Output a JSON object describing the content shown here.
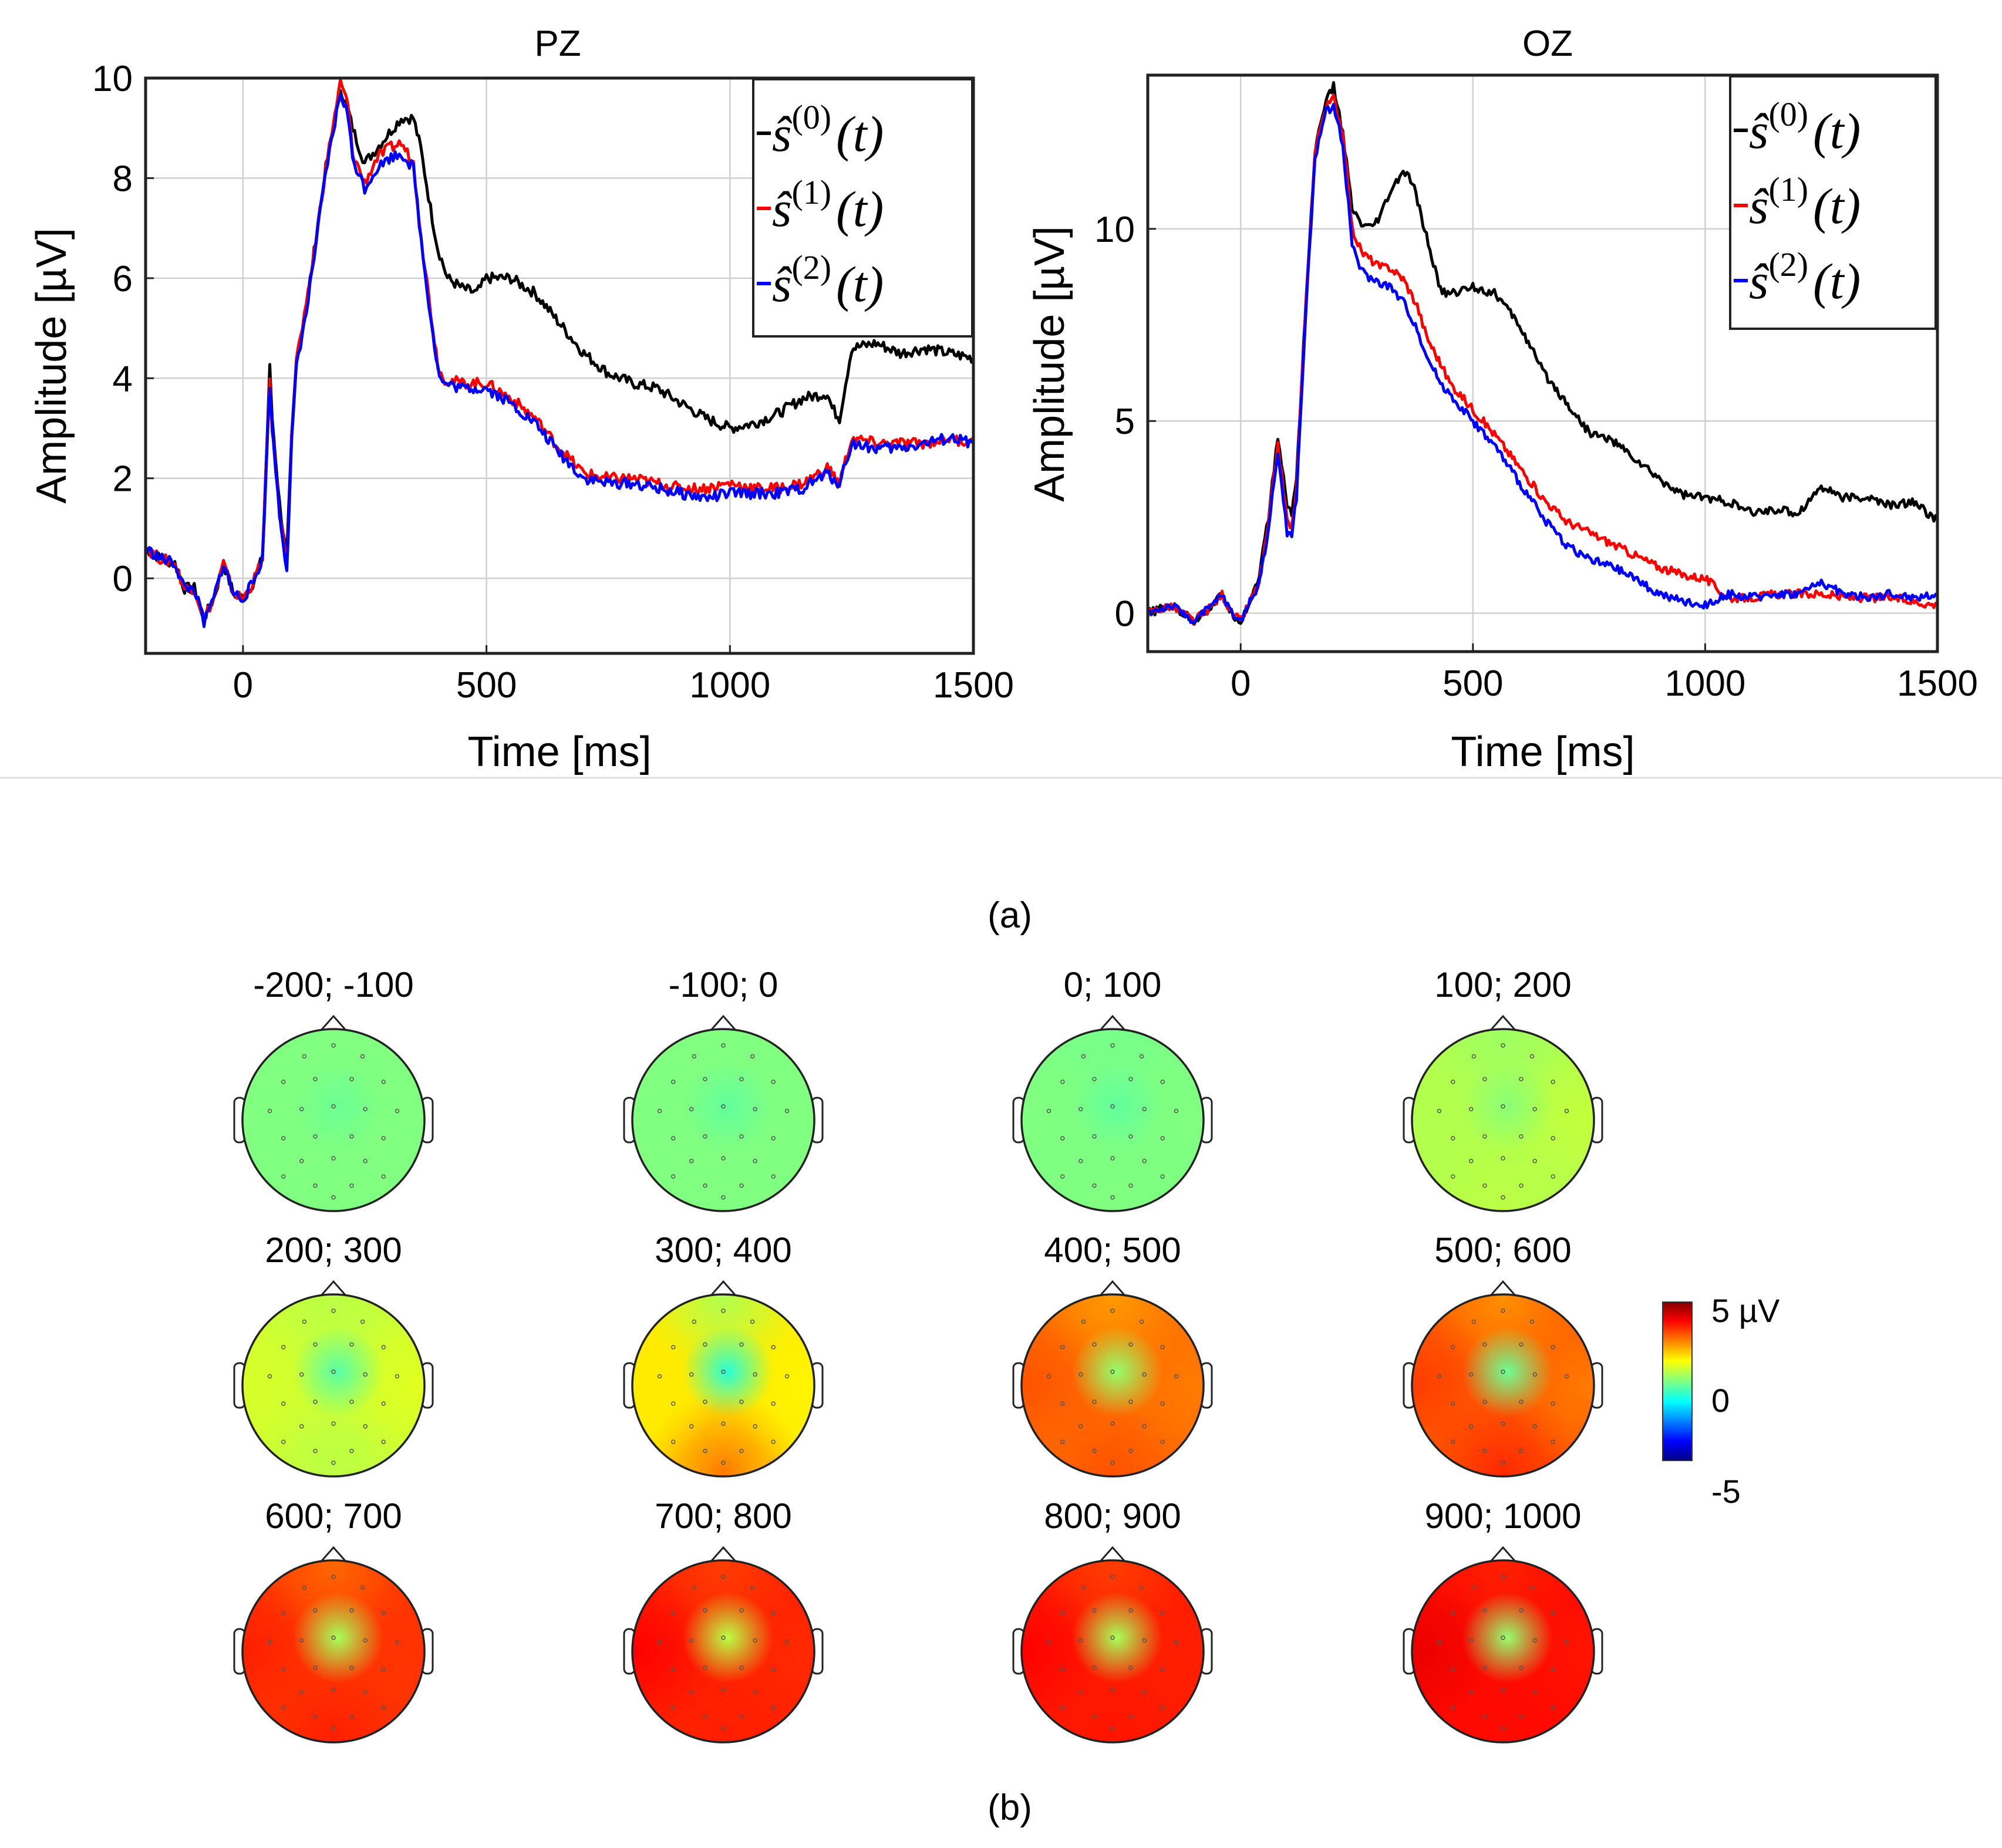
{
  "panel_labels": [
    "(a)",
    "(b)"
  ],
  "chart_data": [
    {
      "type": "line",
      "title": "PZ",
      "xlabel": "Time [ms]",
      "ylabel": "Amplitude [µV]",
      "xlim": [
        -200,
        1500
      ],
      "ylim": [
        -1.5,
        10
      ],
      "xticks": [
        0,
        500,
        1000,
        1500
      ],
      "yticks": [
        0,
        2,
        4,
        6,
        8,
        10
      ],
      "grid": true,
      "legend_position": "top-right",
      "series": [
        {
          "name": "ŝ(0)(t)",
          "legend_base": "ŝ",
          "legend_sup": "(0)",
          "legend_arg": "(t)",
          "color": "#000000",
          "x": [
            -200,
            -170,
            -140,
            -120,
            -100,
            -80,
            -60,
            -40,
            -20,
            0,
            20,
            40,
            55,
            60,
            75,
            90,
            100,
            110,
            130,
            150,
            170,
            200,
            215,
            225,
            250,
            275,
            300,
            325,
            350,
            365,
            385,
            400,
            420,
            450,
            480,
            500,
            550,
            600,
            650,
            700,
            750,
            800,
            850,
            900,
            950,
            1000,
            1050,
            1100,
            1150,
            1200,
            1210,
            1225,
            1250,
            1300,
            1350,
            1400,
            1450,
            1500
          ],
          "y": [
            0.6,
            0.4,
            0.3,
            -0.2,
            -0.2,
            -0.8,
            -0.4,
            0.3,
            -0.3,
            -0.4,
            -0.1,
            0.4,
            4.2,
            3.2,
            1.5,
            0.4,
            2.8,
            4.4,
            5.4,
            6.8,
            8.2,
            9.8,
            9.4,
            9.0,
            8.3,
            8.6,
            8.9,
            9.2,
            9.2,
            8.6,
            7.4,
            6.6,
            6.0,
            5.8,
            5.7,
            6.0,
            6.0,
            5.7,
            5.1,
            4.5,
            4.1,
            3.9,
            3.8,
            3.5,
            3.2,
            3.0,
            3.1,
            3.3,
            3.6,
            3.7,
            3.4,
            3.2,
            4.6,
            4.7,
            4.5,
            4.6,
            4.5,
            4.4
          ]
        },
        {
          "name": "ŝ(1)(t)",
          "legend_base": "ŝ",
          "legend_sup": "(1)",
          "legend_arg": "(t)",
          "color": "#ff0000",
          "x": [
            -200,
            -170,
            -140,
            -120,
            -100,
            -80,
            -60,
            -40,
            -20,
            0,
            20,
            40,
            55,
            60,
            75,
            90,
            100,
            110,
            130,
            150,
            170,
            200,
            215,
            225,
            250,
            275,
            300,
            325,
            350,
            370,
            390,
            400,
            410,
            450,
            500,
            550,
            600,
            650,
            700,
            750,
            800,
            850,
            900,
            950,
            1000,
            1050,
            1100,
            1150,
            1200,
            1210,
            1225,
            1250,
            1300,
            1350,
            1400,
            1450,
            1500
          ],
          "y": [
            0.6,
            0.4,
            0.3,
            -0.2,
            -0.2,
            -0.8,
            -0.4,
            0.3,
            -0.3,
            -0.4,
            -0.1,
            0.4,
            4.0,
            3.0,
            1.3,
            0.3,
            2.8,
            4.4,
            5.4,
            6.8,
            8.2,
            9.9,
            9.5,
            8.5,
            7.9,
            8.4,
            8.6,
            8.7,
            8.3,
            6.5,
            5.0,
            4.3,
            4.0,
            3.9,
            3.9,
            3.6,
            3.2,
            2.6,
            2.1,
            2.0,
            2.0,
            1.9,
            1.8,
            1.8,
            1.9,
            1.8,
            1.8,
            1.9,
            2.2,
            2.1,
            1.9,
            2.8,
            2.7,
            2.7,
            2.7,
            2.8,
            2.7
          ]
        },
        {
          "name": "ŝ(2)(t)",
          "legend_base": "ŝ",
          "legend_sup": "(2)",
          "legend_arg": "(t)",
          "color": "#0000ff",
          "x": [
            -200,
            -170,
            -140,
            -120,
            -100,
            -80,
            -60,
            -40,
            -20,
            0,
            20,
            40,
            55,
            60,
            75,
            90,
            100,
            110,
            130,
            150,
            170,
            200,
            215,
            225,
            250,
            275,
            300,
            325,
            350,
            370,
            390,
            400,
            410,
            450,
            500,
            550,
            600,
            650,
            700,
            750,
            800,
            850,
            900,
            950,
            1000,
            1050,
            1100,
            1150,
            1200,
            1210,
            1225,
            1250,
            1300,
            1350,
            1400,
            1450,
            1500
          ],
          "y": [
            0.6,
            0.4,
            0.3,
            -0.2,
            -0.2,
            -0.9,
            -0.4,
            0.3,
            -0.3,
            -0.4,
            -0.1,
            0.4,
            3.9,
            3.0,
            1.3,
            0.2,
            2.7,
            4.3,
            5.3,
            6.7,
            8.1,
            9.7,
            9.3,
            8.4,
            7.8,
            8.2,
            8.4,
            8.5,
            8.2,
            6.4,
            4.9,
            4.2,
            3.9,
            3.8,
            3.8,
            3.5,
            3.1,
            2.5,
            2.0,
            1.9,
            1.9,
            1.8,
            1.7,
            1.6,
            1.7,
            1.7,
            1.7,
            1.8,
            2.1,
            2.0,
            1.9,
            2.7,
            2.6,
            2.6,
            2.7,
            2.8,
            2.7
          ]
        }
      ]
    },
    {
      "type": "line",
      "title": "OZ",
      "xlabel": "Time [ms]",
      "ylabel": "Amplitude [µV]",
      "xlim": [
        -200,
        1500
      ],
      "ylim": [
        -1,
        14
      ],
      "xticks": [
        0,
        500,
        1000,
        1500
      ],
      "yticks": [
        0,
        5,
        10
      ],
      "grid": true,
      "legend_position": "top-right",
      "series": [
        {
          "name": "ŝ(0)(t)",
          "legend_base": "ŝ",
          "legend_sup": "(0)",
          "legend_arg": "(t)",
          "color": "#000000",
          "x": [
            -200,
            -150,
            -100,
            -60,
            -40,
            -20,
            0,
            20,
            40,
            60,
            80,
            100,
            110,
            120,
            140,
            160,
            180,
            200,
            220,
            240,
            260,
            280,
            300,
            320,
            350,
            370,
            400,
            430,
            450,
            500,
            550,
            600,
            650,
            700,
            750,
            800,
            850,
            900,
            950,
            1000,
            1050,
            1100,
            1150,
            1200,
            1250,
            1300,
            1350,
            1400,
            1450,
            1500
          ],
          "y": [
            0.0,
            0.2,
            -0.2,
            0.2,
            0.5,
            0.0,
            -0.2,
            0.3,
            1.0,
            2.5,
            4.6,
            2.8,
            2.6,
            3.5,
            8.0,
            12.0,
            13.2,
            13.7,
            12.5,
            10.5,
            10.1,
            10.0,
            10.3,
            10.9,
            11.5,
            11.2,
            9.8,
            8.4,
            8.3,
            8.5,
            8.3,
            7.5,
            6.3,
            5.5,
            4.7,
            4.5,
            4.0,
            3.5,
            3.1,
            3.0,
            2.9,
            2.6,
            2.7,
            2.6,
            3.3,
            3.0,
            3.0,
            2.8,
            2.9,
            2.4
          ]
        },
        {
          "name": "ŝ(1)(t)",
          "legend_base": "ŝ",
          "legend_sup": "(1)",
          "legend_arg": "(t)",
          "color": "#ff0000",
          "x": [
            -200,
            -150,
            -100,
            -60,
            -40,
            -20,
            0,
            20,
            40,
            60,
            80,
            100,
            110,
            120,
            140,
            160,
            180,
            200,
            220,
            240,
            260,
            280,
            300,
            320,
            350,
            380,
            400,
            430,
            450,
            500,
            550,
            600,
            650,
            700,
            750,
            800,
            850,
            900,
            950,
            1000,
            1050,
            1100,
            1150,
            1200,
            1250,
            1300,
            1350,
            1400,
            1450,
            1500
          ],
          "y": [
            0.0,
            0.2,
            -0.2,
            0.2,
            0.5,
            0.0,
            -0.2,
            0.3,
            0.8,
            2.3,
            4.4,
            2.4,
            2.2,
            3.2,
            8.0,
            12.0,
            13.1,
            13.4,
            12.5,
            10.0,
            9.4,
            9.2,
            9.0,
            9.0,
            8.7,
            8.0,
            7.2,
            6.5,
            6.0,
            5.3,
            4.6,
            3.8,
            3.0,
            2.4,
            2.1,
            1.8,
            1.5,
            1.2,
            1.0,
            0.9,
            0.4,
            0.4,
            0.5,
            0.5,
            0.5,
            0.4,
            0.4,
            0.4,
            0.3,
            0.2
          ]
        },
        {
          "name": "ŝ(2)(t)",
          "legend_base": "ŝ",
          "legend_sup": "(2)",
          "legend_arg": "(t)",
          "color": "#0000ff",
          "x": [
            -200,
            -150,
            -100,
            -60,
            -40,
            -20,
            0,
            20,
            40,
            60,
            80,
            100,
            110,
            120,
            140,
            160,
            180,
            200,
            220,
            240,
            260,
            280,
            300,
            320,
            350,
            380,
            400,
            430,
            450,
            500,
            550,
            600,
            650,
            700,
            750,
            800,
            850,
            900,
            950,
            1000,
            1050,
            1100,
            1150,
            1200,
            1250,
            1300,
            1350,
            1400,
            1450,
            1500
          ],
          "y": [
            0.0,
            0.2,
            -0.2,
            0.2,
            0.5,
            0.0,
            -0.2,
            0.3,
            0.8,
            2.2,
            4.2,
            2.1,
            2.0,
            3.0,
            7.8,
            11.8,
            13.0,
            13.2,
            12.2,
            9.6,
            8.9,
            8.7,
            8.6,
            8.5,
            8.1,
            7.4,
            6.7,
            6.0,
            5.7,
            5.0,
            4.3,
            3.4,
            2.5,
            1.8,
            1.4,
            1.2,
            0.9,
            0.5,
            0.3,
            0.2,
            0.5,
            0.4,
            0.5,
            0.5,
            0.8,
            0.5,
            0.4,
            0.5,
            0.4,
            0.5
          ]
        }
      ]
    },
    {
      "type": "heatmap",
      "subtype": "scalp topographic maps",
      "colorbar": {
        "label_max": "5 µV",
        "label_mid": "0",
        "label_min": "-5",
        "min": -5,
        "max": 5
      },
      "maps": [
        {
          "label": "-200; -100",
          "front": 0.0,
          "back": 0.0,
          "left": 0.0,
          "right": 0.0,
          "center": -0.2
        },
        {
          "label": "-100; 0",
          "front": 0.0,
          "back": 0.0,
          "left": 0.0,
          "right": 0.0,
          "center": -0.3
        },
        {
          "label": "0; 100",
          "front": -0.1,
          "back": 0.0,
          "left": 0.0,
          "right": 0.0,
          "center": -0.3
        },
        {
          "label": "100; 200",
          "front": 0.3,
          "back": 0.6,
          "left": 0.5,
          "right": 0.7,
          "center": 0.1
        },
        {
          "label": "200; 300",
          "front": 0.6,
          "back": 0.6,
          "left": 0.9,
          "right": 1.0,
          "center": -0.4
        },
        {
          "label": "300; 400",
          "front": 0.5,
          "back": 2.6,
          "left": 1.5,
          "right": 1.4,
          "center": -0.9
        },
        {
          "label": "400; 500",
          "front": 2.3,
          "back": 3.0,
          "left": 3.0,
          "right": 2.6,
          "center": 0.2
        },
        {
          "label": "500; 600",
          "front": 2.4,
          "back": 3.4,
          "left": 3.2,
          "right": 2.6,
          "center": -0.2
        },
        {
          "label": "600; 700",
          "front": 2.8,
          "back": 3.5,
          "left": 3.5,
          "right": 3.3,
          "center": 0.4
        },
        {
          "label": "700; 800",
          "front": 3.2,
          "back": 3.5,
          "left": 3.8,
          "right": 3.4,
          "center": 0.6
        },
        {
          "label": "800; 900",
          "front": 3.2,
          "back": 3.6,
          "left": 3.8,
          "right": 3.5,
          "center": 0.4
        },
        {
          "label": "900; 1000",
          "front": 3.5,
          "back": 3.7,
          "left": 4.0,
          "right": 3.6,
          "center": 0.2
        }
      ]
    }
  ]
}
